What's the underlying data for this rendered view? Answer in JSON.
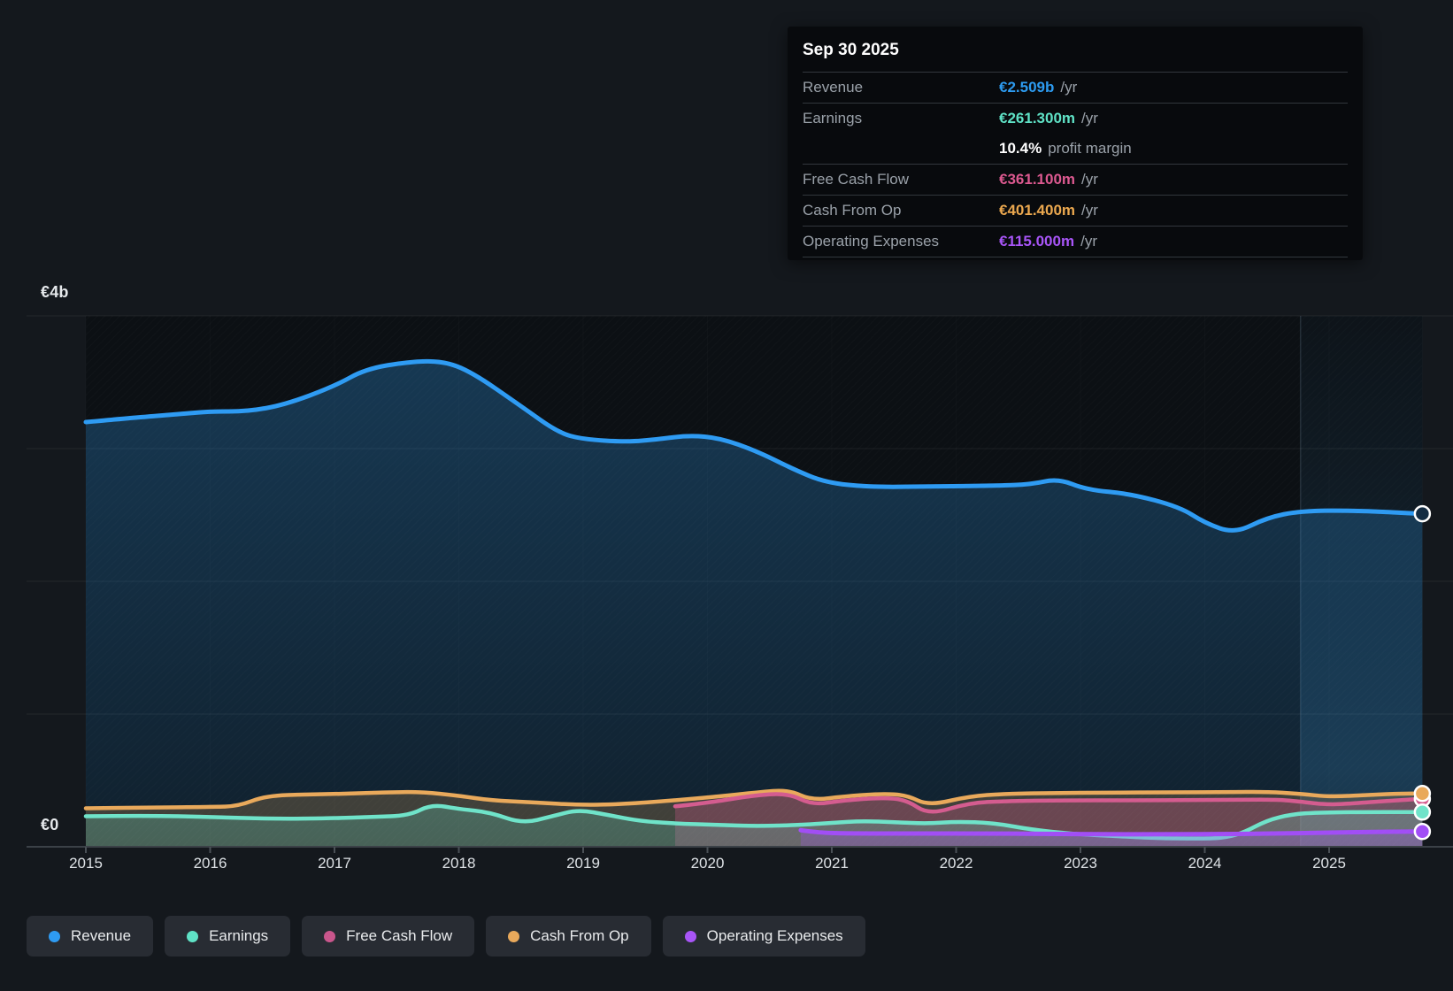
{
  "tooltip": {
    "date": "Sep 30 2025",
    "rows": [
      {
        "label": "Revenue",
        "value": "€2.509b",
        "suffix": "/yr",
        "color": "#2d9bf0"
      },
      {
        "label": "Earnings",
        "value": "€261.300m",
        "suffix": "/yr",
        "color": "#5fe2c6"
      },
      {
        "label": "",
        "value": "10.4%",
        "suffix": "profit margin",
        "color": "#ffffff"
      },
      {
        "label": "Free Cash Flow",
        "value": "€361.100m",
        "suffix": "/yr",
        "color": "#dc5990"
      },
      {
        "label": "Cash From Op",
        "value": "€401.400m",
        "suffix": "/yr",
        "color": "#eba84f"
      },
      {
        "label": "Operating Expenses",
        "value": "€115.000m",
        "suffix": "/yr",
        "color": "#a855f7"
      }
    ]
  },
  "legend": [
    {
      "label": "Revenue",
      "color": "#2e9bf3"
    },
    {
      "label": "Earnings",
      "color": "#5fe2c6"
    },
    {
      "label": "Free Cash Flow",
      "color": "#c9568c"
    },
    {
      "label": "Cash From Op",
      "color": "#e9a95b"
    },
    {
      "label": "Operating Expenses",
      "color": "#a855f7"
    }
  ],
  "chart_data": {
    "type": "area",
    "title": "",
    "unit": "EUR billions per year",
    "xlim": [
      2015,
      2026.0
    ],
    "ylim": [
      0,
      4
    ],
    "grid": true,
    "legend_position": "bottom",
    "x_ticks": [
      2015,
      2016,
      2017,
      2018,
      2019,
      2020,
      2021,
      2022,
      2023,
      2024,
      2025
    ],
    "y_axis_labels": [
      {
        "text": "€4b",
        "value": 4
      },
      {
        "text": "€0",
        "value": 0
      }
    ],
    "past_future_divider_x": 2024.77,
    "data_end_x": 2025.75,
    "series": [
      {
        "name": "Revenue",
        "color": "#2e9bf3",
        "line_width": 5,
        "marker_fill": "#132c42",
        "points": [
          [
            2015.0,
            3.2
          ],
          [
            2015.35,
            3.23
          ],
          [
            2015.75,
            3.26
          ],
          [
            2016.0,
            3.28
          ],
          [
            2016.3,
            3.28
          ],
          [
            2016.6,
            3.33
          ],
          [
            2017.0,
            3.47
          ],
          [
            2017.25,
            3.6
          ],
          [
            2017.6,
            3.655
          ],
          [
            2017.87,
            3.66
          ],
          [
            2018.1,
            3.58
          ],
          [
            2018.5,
            3.32
          ],
          [
            2018.8,
            3.12
          ],
          [
            2019.0,
            3.07
          ],
          [
            2019.35,
            3.05
          ],
          [
            2019.6,
            3.07
          ],
          [
            2019.85,
            3.1
          ],
          [
            2020.1,
            3.08
          ],
          [
            2020.4,
            2.98
          ],
          [
            2020.7,
            2.84
          ],
          [
            2020.95,
            2.745
          ],
          [
            2021.3,
            2.71
          ],
          [
            2021.8,
            2.715
          ],
          [
            2022.3,
            2.72
          ],
          [
            2022.6,
            2.73
          ],
          [
            2022.82,
            2.775
          ],
          [
            2023.05,
            2.69
          ],
          [
            2023.4,
            2.66
          ],
          [
            2023.8,
            2.56
          ],
          [
            2024.0,
            2.44
          ],
          [
            2024.24,
            2.36
          ],
          [
            2024.5,
            2.48
          ],
          [
            2024.77,
            2.53
          ],
          [
            2025.2,
            2.535
          ],
          [
            2025.75,
            2.509
          ]
        ],
        "fill_top": "rgba(45,142,215,0.32)",
        "fill_bottom": "rgba(45,142,215,0.13)"
      },
      {
        "name": "Cash From Op",
        "color": "#e9a95b",
        "line_width": 4.5,
        "marker_fill": "#e9a95b",
        "points": [
          [
            2015.0,
            0.29
          ],
          [
            2015.5,
            0.295
          ],
          [
            2016.0,
            0.3
          ],
          [
            2016.22,
            0.305
          ],
          [
            2016.45,
            0.385
          ],
          [
            2016.8,
            0.395
          ],
          [
            2017.1,
            0.4
          ],
          [
            2017.4,
            0.41
          ],
          [
            2017.7,
            0.414
          ],
          [
            2018.0,
            0.385
          ],
          [
            2018.25,
            0.35
          ],
          [
            2018.6,
            0.335
          ],
          [
            2018.96,
            0.315
          ],
          [
            2019.3,
            0.32
          ],
          [
            2019.74,
            0.35
          ],
          [
            2020.1,
            0.38
          ],
          [
            2020.4,
            0.41
          ],
          [
            2020.65,
            0.43
          ],
          [
            2020.84,
            0.35
          ],
          [
            2021.1,
            0.38
          ],
          [
            2021.4,
            0.4
          ],
          [
            2021.6,
            0.39
          ],
          [
            2021.78,
            0.31
          ],
          [
            2022.1,
            0.38
          ],
          [
            2022.4,
            0.4
          ],
          [
            2022.8,
            0.405
          ],
          [
            2023.2,
            0.408
          ],
          [
            2023.7,
            0.41
          ],
          [
            2024.2,
            0.412
          ],
          [
            2024.5,
            0.414
          ],
          [
            2024.77,
            0.4
          ],
          [
            2025.0,
            0.376
          ],
          [
            2025.3,
            0.39
          ],
          [
            2025.55,
            0.4
          ],
          [
            2025.75,
            0.4014
          ]
        ],
        "fill_top": "rgba(233,169,91,0.22)",
        "fill_bottom": "rgba(233,169,91,0.22)"
      },
      {
        "name": "Free Cash Flow",
        "color": "#d45c8f",
        "line_width": 4.5,
        "marker_fill": "#d45c8f",
        "points": [
          [
            2019.74,
            0.305
          ],
          [
            2020.0,
            0.33
          ],
          [
            2020.35,
            0.385
          ],
          [
            2020.65,
            0.405
          ],
          [
            2020.84,
            0.315
          ],
          [
            2021.1,
            0.35
          ],
          [
            2021.4,
            0.37
          ],
          [
            2021.6,
            0.355
          ],
          [
            2021.78,
            0.24
          ],
          [
            2022.1,
            0.33
          ],
          [
            2022.4,
            0.345
          ],
          [
            2022.9,
            0.35
          ],
          [
            2023.4,
            0.35
          ],
          [
            2023.9,
            0.352
          ],
          [
            2024.3,
            0.355
          ],
          [
            2024.6,
            0.355
          ],
          [
            2024.77,
            0.34
          ],
          [
            2025.0,
            0.315
          ],
          [
            2025.3,
            0.335
          ],
          [
            2025.55,
            0.35
          ],
          [
            2025.75,
            0.3611
          ]
        ],
        "fill_top": "rgba(215,88,143,0.28)",
        "fill_bottom": "rgba(215,88,143,0.28)"
      },
      {
        "name": "Earnings",
        "color": "#6fe3c9",
        "line_width": 4.5,
        "marker_fill": "#6fe3c9",
        "points": [
          [
            2015.0,
            0.23
          ],
          [
            2015.5,
            0.235
          ],
          [
            2016.0,
            0.225
          ],
          [
            2016.5,
            0.21
          ],
          [
            2017.0,
            0.215
          ],
          [
            2017.3,
            0.225
          ],
          [
            2017.6,
            0.235
          ],
          [
            2017.78,
            0.32
          ],
          [
            2018.0,
            0.285
          ],
          [
            2018.25,
            0.26
          ],
          [
            2018.51,
            0.175
          ],
          [
            2018.75,
            0.23
          ],
          [
            2018.96,
            0.28
          ],
          [
            2019.2,
            0.24
          ],
          [
            2019.45,
            0.195
          ],
          [
            2019.74,
            0.175
          ],
          [
            2020.1,
            0.165
          ],
          [
            2020.4,
            0.155
          ],
          [
            2020.75,
            0.165
          ],
          [
            2021.0,
            0.18
          ],
          [
            2021.25,
            0.195
          ],
          [
            2021.5,
            0.185
          ],
          [
            2021.78,
            0.175
          ],
          [
            2022.0,
            0.19
          ],
          [
            2022.3,
            0.18
          ],
          [
            2022.6,
            0.13
          ],
          [
            2022.95,
            0.095
          ],
          [
            2023.3,
            0.08
          ],
          [
            2023.6,
            0.065
          ],
          [
            2023.95,
            0.062
          ],
          [
            2024.13,
            0.065
          ],
          [
            2024.3,
            0.1
          ],
          [
            2024.5,
            0.2
          ],
          [
            2024.7,
            0.245
          ],
          [
            2024.9,
            0.258
          ],
          [
            2025.3,
            0.262
          ],
          [
            2025.75,
            0.2613
          ]
        ],
        "fill_top": "rgba(100,225,200,0.25)",
        "fill_bottom": "rgba(100,225,200,0.22)"
      },
      {
        "name": "Operating Expenses",
        "color": "#a14ef5",
        "line_width": 5,
        "marker_fill": "#a14ef5",
        "points": [
          [
            2020.75,
            0.125
          ],
          [
            2020.9,
            0.105
          ],
          [
            2021.2,
            0.1
          ],
          [
            2021.7,
            0.1
          ],
          [
            2022.2,
            0.1
          ],
          [
            2022.7,
            0.098
          ],
          [
            2023.2,
            0.094
          ],
          [
            2023.7,
            0.094
          ],
          [
            2024.2,
            0.096
          ],
          [
            2024.6,
            0.1
          ],
          [
            2024.9,
            0.105
          ],
          [
            2025.2,
            0.11
          ],
          [
            2025.5,
            0.114
          ],
          [
            2025.75,
            0.115
          ]
        ],
        "fill_top": "rgba(165,85,247,0.28)",
        "fill_bottom": "rgba(165,85,247,0.24)"
      }
    ]
  }
}
